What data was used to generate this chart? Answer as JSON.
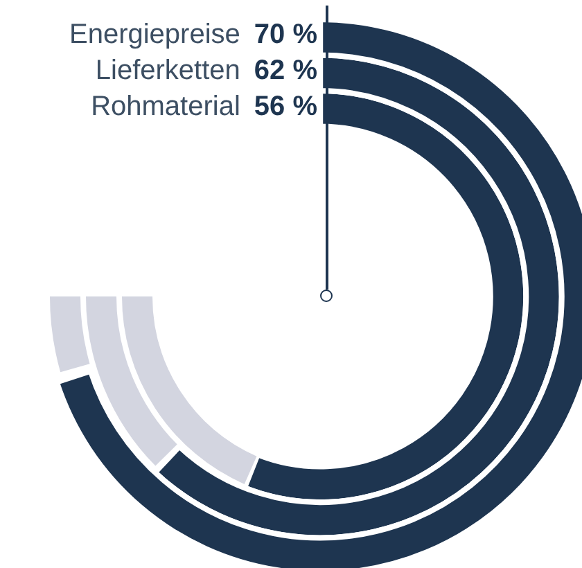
{
  "chart_data": {
    "type": "other",
    "categories": [
      "Energiepreise",
      "Lieferketten",
      "Rohmaterial"
    ],
    "values": [
      70,
      62,
      56
    ],
    "value_labels": [
      "70 %",
      "62 %",
      "56 %"
    ],
    "color": "#1e3550"
  }
}
